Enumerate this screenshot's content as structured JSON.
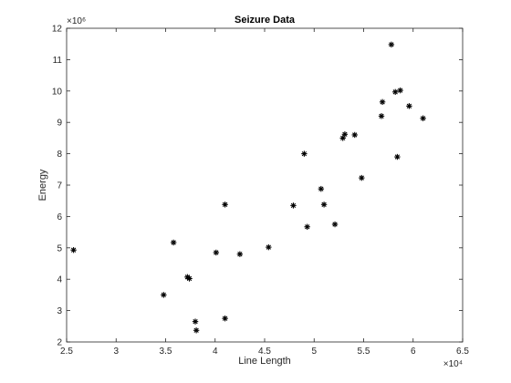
{
  "chart_data": {
    "type": "scatter",
    "title": "Seizure Data",
    "xlabel": "Line Length",
    "ylabel": "Energy",
    "x_exponent_label": "×10⁴",
    "y_exponent_label": "×10⁶",
    "xlim": [
      2.5,
      6.5
    ],
    "ylim": [
      2,
      12
    ],
    "x_ticks": [
      "2.5",
      "3",
      "3.5",
      "4",
      "4.5",
      "5",
      "5.5",
      "6",
      "6.5"
    ],
    "y_ticks": [
      "2",
      "3",
      "4",
      "5",
      "6",
      "7",
      "8",
      "9",
      "10",
      "11",
      "12"
    ],
    "x_tick_values": [
      2.5,
      3,
      3.5,
      4,
      4.5,
      5,
      5.5,
      6,
      6.5
    ],
    "y_tick_values": [
      2,
      3,
      4,
      5,
      6,
      7,
      8,
      9,
      10,
      11,
      12
    ],
    "grid": false,
    "marker": "asterisk",
    "marker_color": "#000000",
    "points": [
      {
        "x": 2.57,
        "y": 4.93
      },
      {
        "x": 3.48,
        "y": 3.5
      },
      {
        "x": 3.58,
        "y": 5.17
      },
      {
        "x": 3.72,
        "y": 4.07
      },
      {
        "x": 3.74,
        "y": 4.02
      },
      {
        "x": 3.8,
        "y": 2.65
      },
      {
        "x": 3.81,
        "y": 2.37
      },
      {
        "x": 4.01,
        "y": 4.85
      },
      {
        "x": 4.1,
        "y": 6.38
      },
      {
        "x": 4.1,
        "y": 2.75
      },
      {
        "x": 4.25,
        "y": 4.8
      },
      {
        "x": 4.54,
        "y": 5.02
      },
      {
        "x": 4.79,
        "y": 6.35
      },
      {
        "x": 4.9,
        "y": 8.0
      },
      {
        "x": 4.93,
        "y": 5.67
      },
      {
        "x": 5.07,
        "y": 6.88
      },
      {
        "x": 5.1,
        "y": 6.38
      },
      {
        "x": 5.21,
        "y": 5.75
      },
      {
        "x": 5.29,
        "y": 8.5
      },
      {
        "x": 5.31,
        "y": 8.62
      },
      {
        "x": 5.41,
        "y": 8.6
      },
      {
        "x": 5.48,
        "y": 7.23
      },
      {
        "x": 5.68,
        "y": 9.2
      },
      {
        "x": 5.69,
        "y": 9.65
      },
      {
        "x": 5.78,
        "y": 11.48
      },
      {
        "x": 5.82,
        "y": 9.97
      },
      {
        "x": 5.84,
        "y": 7.9
      },
      {
        "x": 5.87,
        "y": 10.02
      },
      {
        "x": 5.96,
        "y": 9.52
      },
      {
        "x": 6.1,
        "y": 9.13
      }
    ]
  }
}
